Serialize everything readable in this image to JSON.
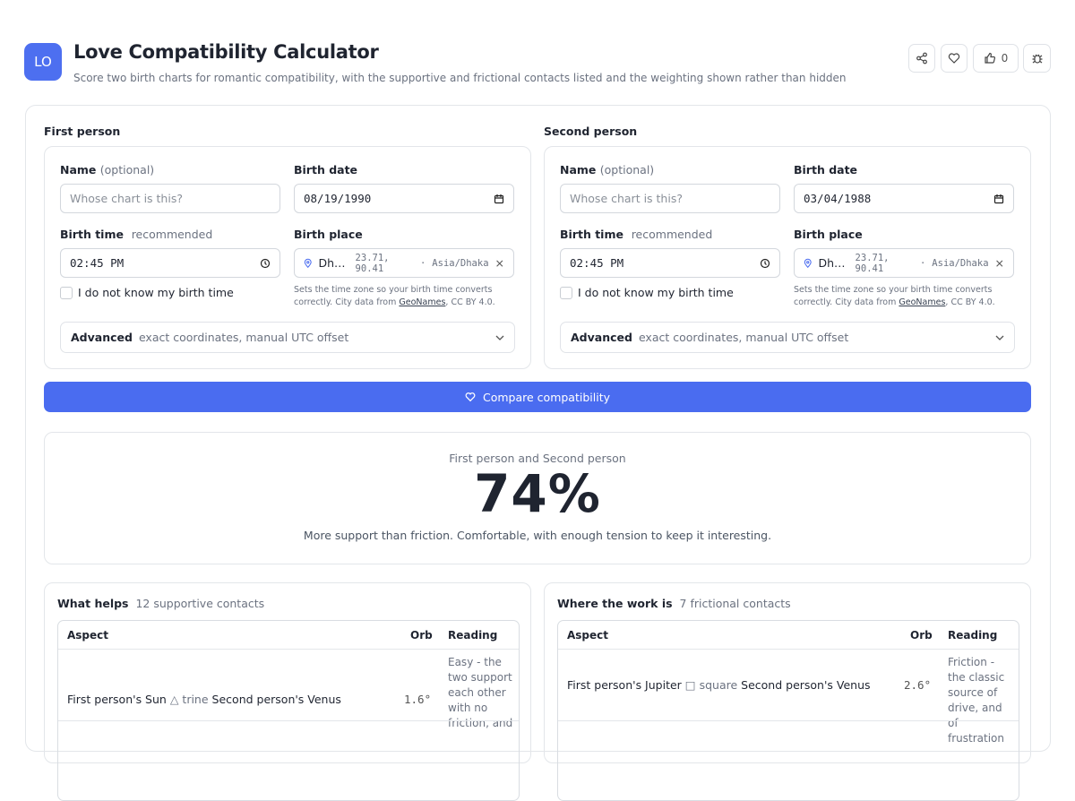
{
  "header": {
    "logo": "LO",
    "title": "Love Compatibility Calculator",
    "subtitle": "Score two birth charts for romantic compatibility, with the supportive and frictional contacts listed and the weighting shown rather than hidden"
  },
  "toolbar": {
    "likes": 0
  },
  "persons": [
    {
      "heading": "First person",
      "name_label": "Name",
      "optional": "(optional)",
      "name_placeholder": "Whose chart is this?",
      "date_label": "Birth date",
      "date_value": "08/19/1990",
      "time_label": "Birth time",
      "recommended": "recommended",
      "time_value": "02:45 PM",
      "place_label": "Birth place",
      "place_value": "Dh…",
      "coords": "23.71, 90.41",
      "separator": "·",
      "timezone": "Asia/Dhaka",
      "unknown_time": "I do not know my birth time",
      "hint": "Sets the time zone so your birth time converts correctly. City data from ",
      "hint_link": "GeoNames",
      "hint_tail": ", CC BY 4.0.",
      "advanced": "Advanced",
      "advanced_hint": "exact coordinates, manual UTC offset"
    },
    {
      "heading": "Second person",
      "name_label": "Name",
      "optional": "(optional)",
      "name_placeholder": "Whose chart is this?",
      "date_label": "Birth date",
      "date_value": "03/04/1988",
      "time_label": "Birth time",
      "recommended": "recommended",
      "time_value": "02:45 PM",
      "place_label": "Birth place",
      "place_value": "Dh…",
      "coords": "23.71, 90.41",
      "separator": "·",
      "timezone": "Asia/Dhaka",
      "unknown_time": "I do not know my birth time",
      "hint": "Sets the time zone so your birth time converts correctly. City data from ",
      "hint_link": "GeoNames",
      "hint_tail": ", CC BY 4.0.",
      "advanced": "Advanced",
      "advanced_hint": "exact coordinates, manual UTC offset"
    }
  ],
  "compare_button": "Compare compatibility",
  "result": {
    "pair": "First person and Second person",
    "score": "74%",
    "summary": "More support than friction. Comfortable, with enough tension to keep it interesting."
  },
  "panels": [
    {
      "title": "What helps",
      "count": "12 supportive contacts",
      "columns": [
        "Aspect",
        "Orb",
        "Reading"
      ],
      "rows": [
        {
          "from": "First person's Sun",
          "symbol": "△",
          "aspect": "trine",
          "to": "Second person's Venus",
          "orb": "1.6°",
          "reading": "Easy - the two support each other with no friction, and"
        }
      ]
    },
    {
      "title": "Where the work is",
      "count": "7 frictional contacts",
      "columns": [
        "Aspect",
        "Orb",
        "Reading"
      ],
      "rows": [
        {
          "from": "First person's Jupiter",
          "symbol": "□",
          "aspect": "square",
          "to": "Second person's Venus",
          "orb": "2.6°",
          "reading": "Friction - the classic source of drive, and of frustration"
        }
      ]
    }
  ]
}
